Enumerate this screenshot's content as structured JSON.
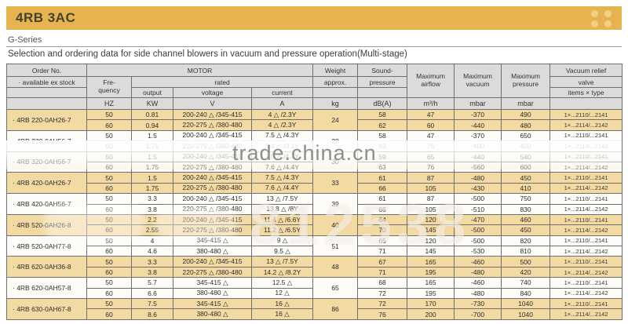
{
  "banner": {
    "title": "4RB 3AC"
  },
  "series_label": "G-Series",
  "page_title": "Selection and ordering data for side channel blowers in vacuum and pressure operation(Multi-stage)",
  "colors": {
    "banner": "#E5B44E",
    "header_bg": "#DBDBDB",
    "row_highlight": "#F3D9A2"
  },
  "watermarks": {
    "band_text": "trade.china.cn",
    "big_text": "812538"
  },
  "table": {
    "header": {
      "order_no": "Order No.",
      "ex_stock": "· available ex stock",
      "motor": "MOTOR",
      "freq_1": "Fre-",
      "freq_2": "quency",
      "rated": "rated",
      "output": "output",
      "voltage": "voltage",
      "current": "current",
      "weight_1": "Weight",
      "weight_2": "approx.",
      "sound_1": "Sound-",
      "sound_2": "pressure",
      "airflow": "Maximum airflow",
      "vacuum": "Maximum vacuum",
      "pressure": "Maximum pressure",
      "relief_1": "Vacuum relief",
      "relief_2": "valve",
      "relief_3": "items × type"
    },
    "units": {
      "hz": "HZ",
      "kw": "KW",
      "v": "V",
      "a": "A",
      "kg": "kg",
      "dba": "dB(A)",
      "m3h": "m³/h",
      "mbar_vac": "mbar",
      "mbar_press": "mbar"
    },
    "models": [
      {
        "order": "· 4RB 220-0AH26-7",
        "highlight": true,
        "weight": "24",
        "rows": [
          [
            "50",
            "0.81",
            "200-240 △ /345-415",
            "4 △ /2.3Y",
            "58",
            "47",
            "-370",
            "490",
            "1×...2110/...2141"
          ],
          [
            "60",
            "0.94",
            "220-275 △ /380-480",
            "4 △ /2.3Y",
            "62",
            "60",
            "-440",
            "480",
            "1×...2114/...2142"
          ]
        ]
      },
      {
        "order": "· 4RB 220-0AH56-7",
        "highlight": false,
        "weight": "28",
        "rows": [
          [
            "50",
            "1.5",
            "200-240 △ /345-415",
            "7.5 △ /4.3Y",
            "58",
            "47",
            "-370",
            "650",
            "1×...2110/...2141"
          ],
          [
            "60",
            "1.75",
            "220-275 △ /380-480",
            "5.4 △ /3.1Y",
            "63",
            "76",
            "-400",
            "400",
            "1×...2114/...2142"
          ]
        ]
      },
      {
        "order": "· 4RB 320-0AH56-7",
        "highlight": false,
        "weight": "30",
        "rows": [
          [
            "50",
            "1.5",
            "200-240 △ /345-415",
            "7.5 △ /4.3Y",
            "59",
            "65",
            "-440",
            "540",
            "1×...2110/...2141"
          ],
          [
            "60",
            "1.75",
            "220-275 △ /380-480",
            "7.6 △ /4.4Y",
            "63",
            "76",
            "-560",
            "600",
            "1×...2114/...2142"
          ]
        ]
      },
      {
        "order": "· 4RB 420-0AH26-7",
        "highlight": true,
        "weight": "33",
        "rows": [
          [
            "50",
            "1.5",
            "200-240 △ /345-415",
            "7.5 △ /4.3Y",
            "61",
            "87",
            "-480",
            "450",
            "1×...2110/...2141"
          ],
          [
            "60",
            "1.75",
            "220-275 △ /380-480",
            "7.6 △ /4.4Y",
            "66",
            "105",
            "-430",
            "410",
            "1×...2114/...2142"
          ]
        ]
      },
      {
        "order": "· 4RB 420-0AH56-7",
        "highlight": false,
        "weight": "39",
        "rows": [
          [
            "50",
            "3.3",
            "200-240 △ /345-415",
            "13 △ /7.5Y",
            "61",
            "87",
            "-500",
            "750",
            "1×...2110/...2141"
          ],
          [
            "60",
            "3.8",
            "220-275 △ /380-480",
            "13.8 △ /8Y",
            "66",
            "105",
            "-510",
            "830",
            "1×...2114/...2142"
          ]
        ]
      },
      {
        "order": "· 4RB 520-0AH26-8",
        "highlight": true,
        "weight": "40",
        "rows": [
          [
            "50",
            "2.2",
            "200-240 △ /345-415",
            "11.4 △ /6.6Y",
            "64",
            "120",
            "-470",
            "460",
            "1×...2110/...2141"
          ],
          [
            "60",
            "2.55",
            "220-275 △ /380-480",
            "11.2 △ /6.5Y",
            "70",
            "145",
            "-500",
            "450",
            "1×...2114/...2142"
          ]
        ]
      },
      {
        "order": "· 4RB 520-0AH77-8",
        "highlight": false,
        "weight": "51",
        "rows": [
          [
            "50",
            "4",
            "345-415 △",
            "9 △",
            "65",
            "120",
            "-500",
            "820",
            "1×...2110/...2141"
          ],
          [
            "60",
            "4.6",
            "380-480 △",
            "9.5 △",
            "71",
            "145",
            "-530",
            "810",
            "1×...2114/...2142"
          ]
        ]
      },
      {
        "order": "· 4RB 620-0AH36-8",
        "highlight": true,
        "weight": "48",
        "rows": [
          [
            "50",
            "3.3",
            "200-240 △ /345-415",
            "13 △ /7.5Y",
            "67",
            "165",
            "-460",
            "500",
            "1×...2110/...2141"
          ],
          [
            "60",
            "3.8",
            "220-275 △ /380-480",
            "14.2 △ /8.2Y",
            "71",
            "195",
            "-480",
            "420",
            "1×...2114/...2142"
          ]
        ]
      },
      {
        "order": "· 4RB 620-0AH57-8",
        "highlight": false,
        "weight": "65",
        "rows": [
          [
            "50",
            "5.7",
            "345-415 △",
            "12.5 △",
            "68",
            "165",
            "-460",
            "740",
            "1×...2110/...2141"
          ],
          [
            "60",
            "6.6",
            "380-480 △",
            "12 △",
            "72",
            "195",
            "-480",
            "840",
            "1×...2114/...2142"
          ]
        ]
      },
      {
        "order": "· 4RB 630-0AH67-8",
        "highlight": true,
        "weight": "86",
        "rows": [
          [
            "50",
            "7.5",
            "345-415 △",
            "16 △",
            "72",
            "170",
            "-730",
            "1040",
            "1×...2110/...2141"
          ],
          [
            "60",
            "8.6",
            "380-480 △",
            "16 △",
            "76",
            "200",
            "-700",
            "1040",
            "1×...2114/...2142"
          ]
        ]
      }
    ]
  }
}
